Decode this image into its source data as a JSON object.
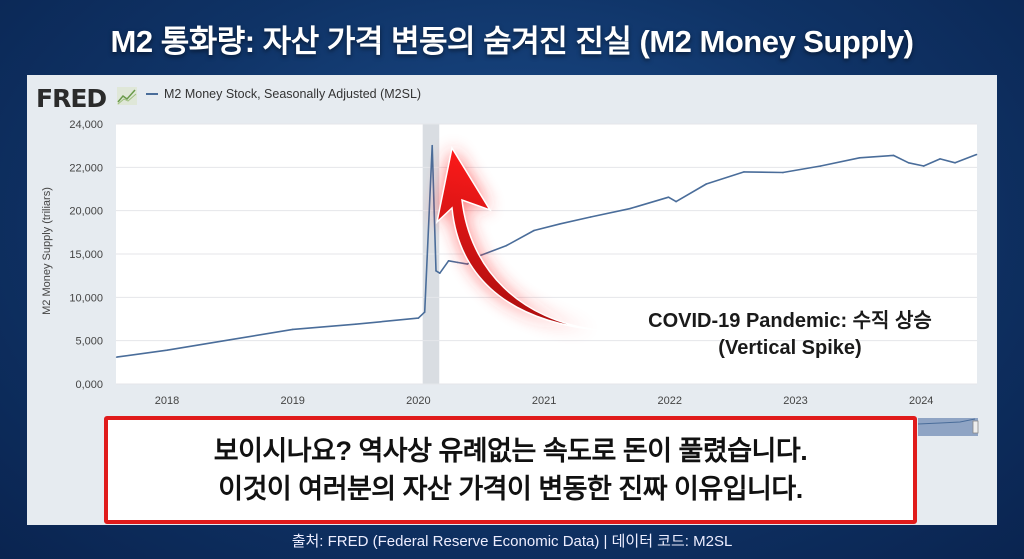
{
  "title": "M2 통화량: 자산 가격 변동의 숨겨진 진실 (M2 Money Supply)",
  "source_logo": "FRED",
  "legend_label": "M2 Money Stock, Seasonally Adjusted (M2SL)",
  "annotation": {
    "line1": "COVID-19 Pandemic: 수직 상승",
    "line2": "(Vertical Spike)"
  },
  "caption": {
    "line1": "보이시나요? 역사상 유례없는 속도로 돈이 풀렸습니다.",
    "line2": "이것이 여러분의 자산 가격이 변동한 진짜 이유입니다."
  },
  "footer": "출처: FRED (Federal Reserve Economic Data) | 데이터 코드: M2SL",
  "colors": {
    "line": "#4a6d9a",
    "arrow": "#e01b1b",
    "caption_border": "#e01b1b",
    "recession_shade": "#d9dde2"
  },
  "chart_data": {
    "type": "line",
    "title": "",
    "xlabel": "",
    "ylabel": "M2 Money Supply (triliars)",
    "y_ticks": [
      "0,000",
      "5,000",
      "10,000",
      "15,000",
      "20,000",
      "22,000",
      "24,000"
    ],
    "y_tick_values": [
      0,
      5000,
      10000,
      15000,
      20000,
      22000,
      24000
    ],
    "x_ticks": [
      "2018",
      "2019",
      "2020",
      "2021",
      "2022",
      "2023",
      "2024"
    ],
    "x_range": [
      2017.6,
      2024.45
    ],
    "grid": true,
    "legend": "top-left",
    "shaded_region": [
      2020.05,
      2020.15
    ],
    "series": [
      {
        "name": "M2 Money Stock, Seasonally Adjusted (M2SL)",
        "x": [
          2017.6,
          2018.0,
          2018.5,
          2019.0,
          2019.5,
          2020.0,
          2020.05,
          2020.11,
          2020.14,
          2020.17,
          2020.24,
          2020.31,
          2020.39,
          2020.49,
          2020.7,
          2020.92,
          2021.13,
          2021.37,
          2021.68,
          2021.99,
          2022.05,
          2022.29,
          2022.59,
          2022.9,
          2023.2,
          2023.51,
          2023.78,
          2023.9,
          2024.02,
          2024.15,
          2024.27,
          2024.44
        ],
        "y": [
          3100,
          3900,
          5100,
          6300,
          6900,
          7600,
          8300,
          23000,
          13060,
          12790,
          14220,
          14030,
          13840,
          14810,
          15970,
          17710,
          18490,
          19270,
          20090,
          20620,
          20420,
          21230,
          21790,
          21760,
          22060,
          22440,
          22550,
          22210,
          22060,
          22390,
          22210,
          22590
        ]
      }
    ]
  }
}
